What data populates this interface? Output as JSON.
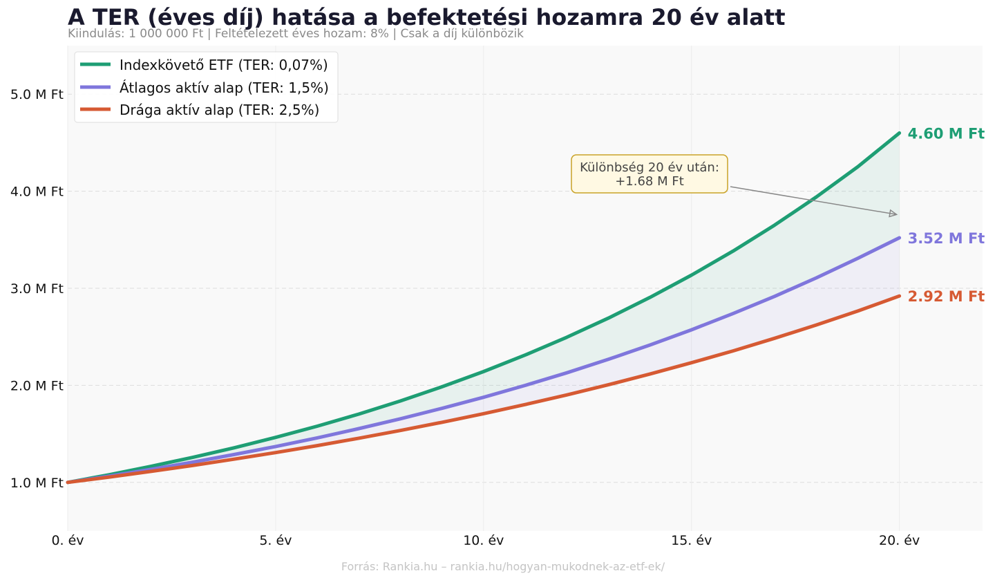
{
  "chart_data": {
    "type": "line",
    "title": "A TER (éves díj) hatása a befektetési hozamra 20 év alatt",
    "subtitle": "Kiindulás: 1 000 000 Ft | Feltételezett éves hozam: 8% | Csak a díj különbözik",
    "source": "Forrás: Rankia.hu – rankia.hu/hogyan-mukodnek-az-etf-ek/",
    "xlabel": "",
    "ylabel": "",
    "xlim": [
      0,
      22
    ],
    "ylim": [
      0.5,
      5.5
    ],
    "x": [
      0,
      1,
      2,
      3,
      4,
      5,
      6,
      7,
      8,
      9,
      10,
      11,
      12,
      13,
      14,
      15,
      16,
      17,
      18,
      19,
      20
    ],
    "x_ticks": [
      0,
      5,
      10,
      15,
      20
    ],
    "x_tick_labels": [
      "0. év",
      "5. év",
      "10. év",
      "15. év",
      "20. év"
    ],
    "y_ticks": [
      1.0,
      2.0,
      3.0,
      4.0,
      5.0
    ],
    "y_tick_labels": [
      "1.0 M Ft",
      "2.0 M Ft",
      "3.0 M Ft",
      "4.0 M Ft",
      "5.0 M Ft"
    ],
    "grid": true,
    "legend_position": "top-left",
    "series": [
      {
        "name": "Indexkövető ETF (TER: 0,07%)",
        "color": "#1e9e74",
        "fill_color": "#1e9e74",
        "values": [
          1.0,
          1.079,
          1.165,
          1.257,
          1.356,
          1.464,
          1.579,
          1.704,
          1.839,
          1.985,
          2.142,
          2.312,
          2.495,
          2.692,
          2.905,
          3.135,
          3.383,
          3.651,
          3.94,
          4.252,
          4.6
        ],
        "end_label": "4.60 M Ft"
      },
      {
        "name": "Átlagos aktív alap (TER: 1,5%)",
        "color": "#7f76dc",
        "fill_color": "#7f76dc",
        "values": [
          1.0,
          1.065,
          1.134,
          1.208,
          1.287,
          1.37,
          1.459,
          1.554,
          1.655,
          1.763,
          1.877,
          1.999,
          2.129,
          2.268,
          2.415,
          2.572,
          2.739,
          2.917,
          3.107,
          3.309,
          3.52
        ],
        "end_label": "3.52 M Ft"
      },
      {
        "name": "Drága aktív alap (TER: 2,5%)",
        "color": "#d65a33",
        "values": [
          1.0,
          1.055,
          1.113,
          1.174,
          1.239,
          1.307,
          1.379,
          1.455,
          1.535,
          1.619,
          1.708,
          1.802,
          1.901,
          2.006,
          2.116,
          2.233,
          2.355,
          2.485,
          2.622,
          2.766,
          2.92
        ],
        "end_label": "2.92 M Ft"
      }
    ],
    "annotation": {
      "line1": "Különbség 20 év után:",
      "line2": "+1.68 M Ft",
      "arrow_to_x": 20,
      "arrow_to_y": 3.76
    }
  }
}
